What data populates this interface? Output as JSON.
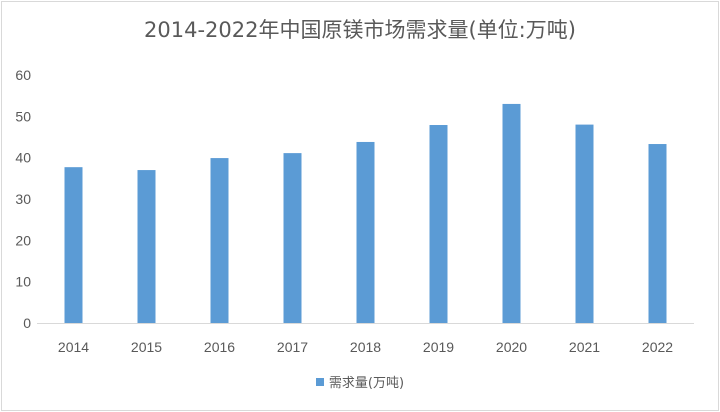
{
  "chart_data": {
    "type": "bar",
    "title": "2014-2022年中国原镁市场需求量(单位:万吨)",
    "categories": [
      "2014",
      "2015",
      "2016",
      "2017",
      "2018",
      "2019",
      "2020",
      "2021",
      "2022"
    ],
    "series": [
      {
        "name": "需求量(万吨)",
        "values": [
          37.7,
          37.0,
          39.9,
          41.1,
          43.8,
          47.9,
          53.0,
          48.0,
          43.3
        ],
        "color": "#5b9bd5"
      }
    ],
    "yticks": [
      0,
      10,
      20,
      30,
      40,
      50,
      60
    ],
    "ylim": [
      0,
      60
    ],
    "xlabel": "",
    "ylabel": "",
    "grid": false,
    "legend": "bottom"
  }
}
